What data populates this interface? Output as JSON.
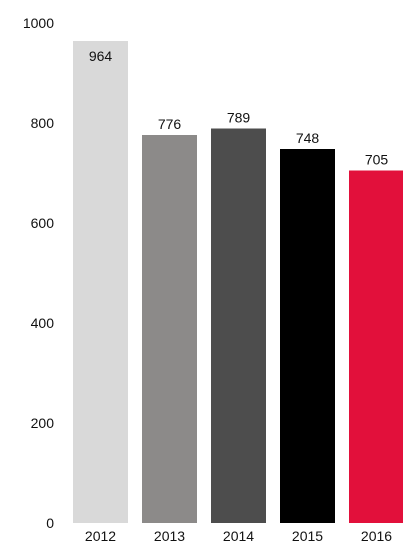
{
  "chart_data": {
    "type": "bar",
    "title": "",
    "xlabel": "",
    "ylabel": "",
    "categories": [
      "2012",
      "2013",
      "2014",
      "2015",
      "2016"
    ],
    "values": [
      964,
      776,
      789,
      748,
      705
    ],
    "data_labels": [
      "964",
      "776",
      "789",
      "748",
      "705"
    ],
    "bar_colors": [
      "#d9d9d9",
      "#8c8a89",
      "#4d4d4d",
      "#000000",
      "#e2103b"
    ],
    "ylim": [
      0,
      1000
    ],
    "y_ticks": [
      0,
      200,
      400,
      600,
      800,
      1000
    ],
    "y_tick_labels": [
      "0",
      "200",
      "400",
      "600",
      "800",
      "1000"
    ],
    "grid": false,
    "legend": "none",
    "data_label_placement": "above bar; inside top for the tallest bar"
  }
}
